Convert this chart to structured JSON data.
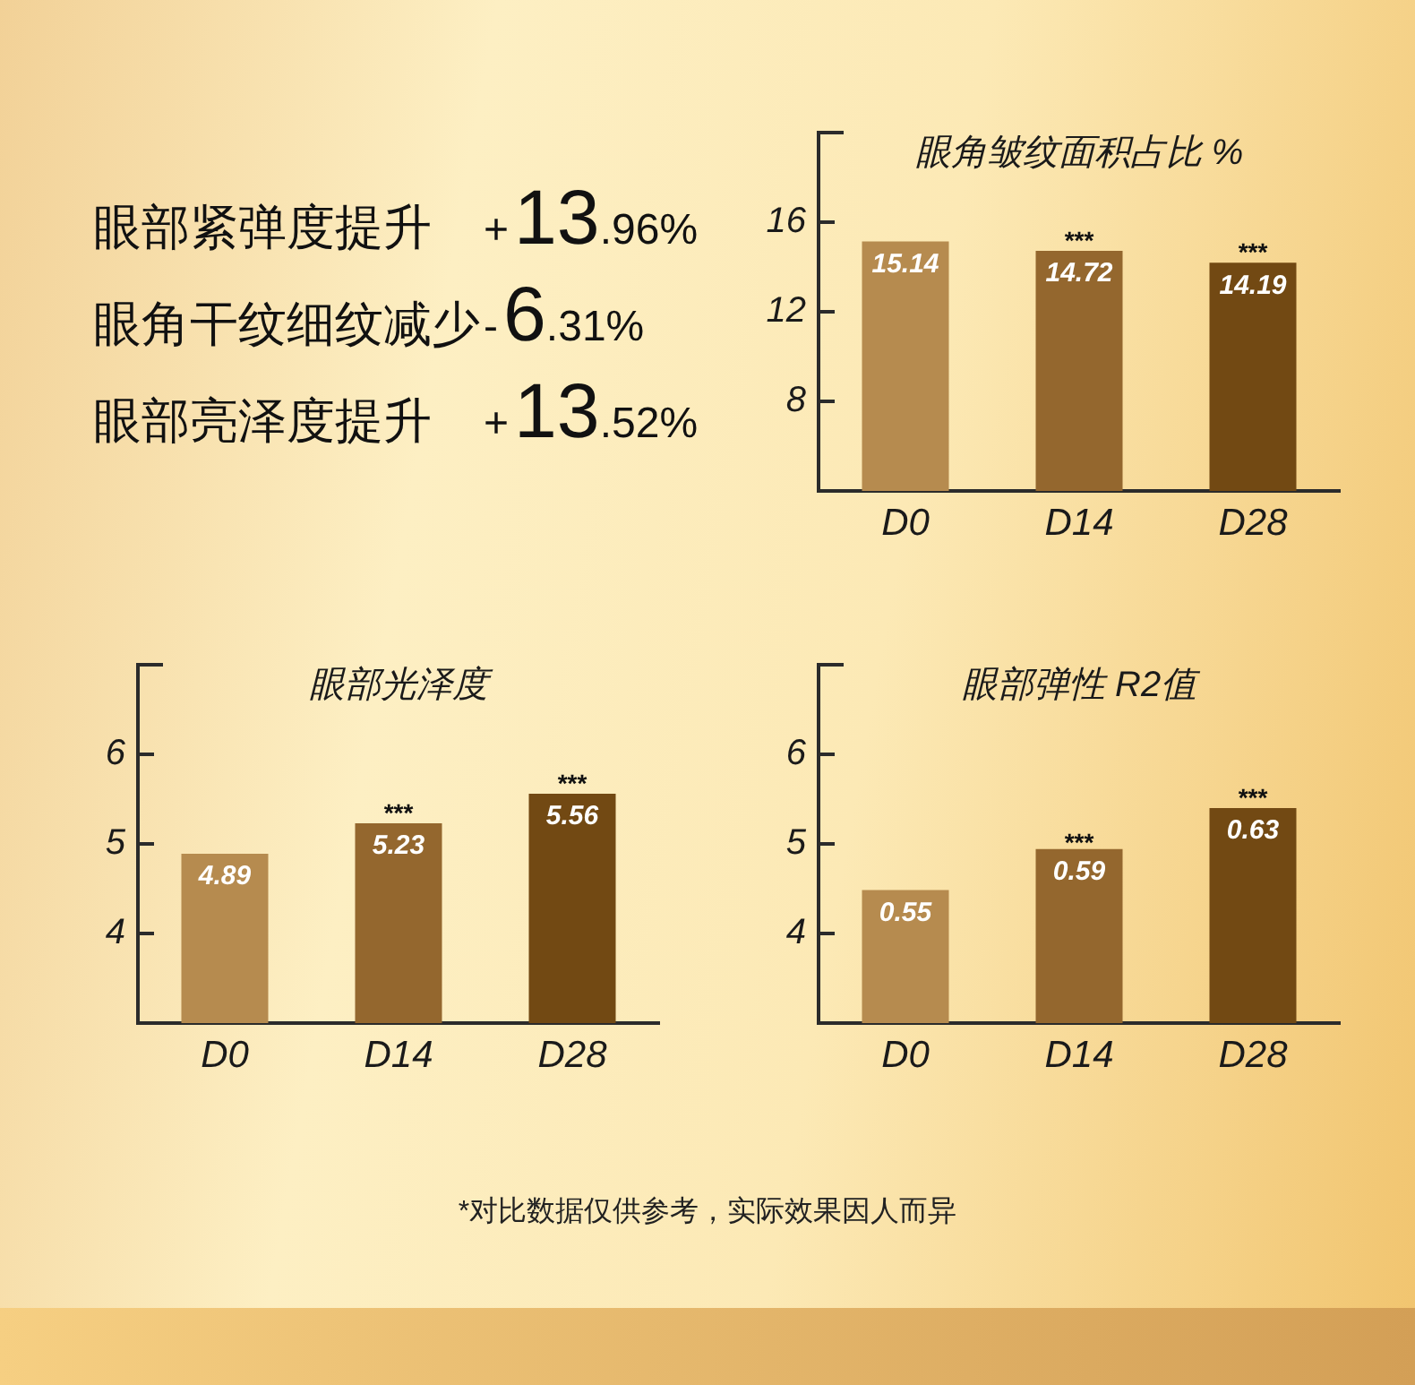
{
  "chart_data": [
    {
      "type": "other",
      "annotations": [
        "眼部紧弹度提升",
        "+13.96%",
        "眼角干纹细纹减少",
        "-6.31%",
        "眼部亮泽度提升",
        "+13.52%"
      ]
    },
    {
      "type": "bar",
      "title": "眼角皱纹面积占比 %",
      "categories": [
        "D0",
        "D14",
        "D28"
      ],
      "values": [
        15.14,
        14.72,
        14.19
      ],
      "colors": [
        "#b68b4f",
        "#94672e",
        "#724913"
      ],
      "ylim": [
        4,
        20
      ],
      "yticks": [
        8,
        12,
        16
      ],
      "data_labels": true,
      "annotations": [
        {
          "text": "***",
          "x": "D14",
          "y": 14.72
        },
        {
          "text": "***",
          "x": "D28",
          "y": 14.19
        }
      ]
    },
    {
      "type": "bar",
      "title": "眼部光泽度",
      "categories": [
        "D0",
        "D14",
        "D28"
      ],
      "values": [
        4.89,
        5.23,
        5.56
      ],
      "colors": [
        "#b68b4f",
        "#94672e",
        "#724913"
      ],
      "ylim": [
        3,
        7
      ],
      "yticks": [
        4,
        5,
        6
      ],
      "data_labels": true,
      "annotations": [
        {
          "text": "***",
          "x": "D14",
          "y": 5.23
        },
        {
          "text": "***",
          "x": "D28",
          "y": 5.56
        }
      ]
    },
    {
      "type": "bar",
      "title": "眼部弹性 R2值",
      "categories": [
        "D0",
        "D14",
        "D28"
      ],
      "series": [
        {
          "values": [
            0.55,
            0.59,
            0.63
          ],
          "axis": "y2"
        }
      ],
      "colors": [
        "#b68b4f",
        "#94672e",
        "#724913"
      ],
      "ylim": [
        3,
        7
      ],
      "yticks": [
        4,
        5,
        6
      ],
      "y2lim": [
        0.42,
        0.77
      ],
      "data_labels": true,
      "annotations": [
        {
          "text": "***",
          "x": "D14",
          "y": 4.9
        },
        {
          "text": "***",
          "x": "D28",
          "y": 5.4
        },
        "*对比数据仅供参考，实际效果因人而异"
      ]
    }
  ]
}
